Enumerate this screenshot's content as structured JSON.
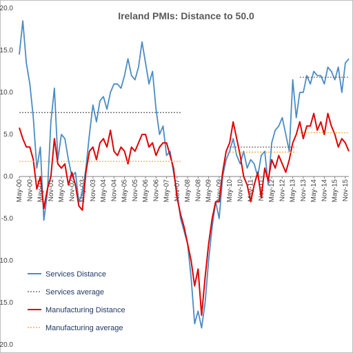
{
  "chart_data": {
    "type": "line",
    "title": "Ireland PMIs: Distance to 50.0",
    "xlabel": "",
    "ylabel": "",
    "ylim": [
      -20,
      20
    ],
    "yticks": [
      "20.0",
      "15.0",
      "10.0",
      "5.0",
      "0.0",
      "-5.0",
      "-10.0",
      "-15.0",
      "-20.0"
    ],
    "ytick_values": [
      20,
      15,
      10,
      5,
      0,
      -5,
      -10,
      -15,
      -20
    ],
    "xtick_labels": [
      "May-00",
      "Nov-00",
      "May-01",
      "Nov-01",
      "May-02",
      "Nov-02",
      "May-03",
      "Nov-03",
      "May-04",
      "Nov-04",
      "May-05",
      "Nov-05",
      "May-06",
      "Nov-06",
      "May-07",
      "Nov-07",
      "May-08",
      "Nov-08",
      "May-09",
      "Nov-09",
      "May-10",
      "Nov-10",
      "May-11",
      "Nov-11",
      "May-12",
      "Nov-12",
      "May-13",
      "Nov-13",
      "May-14",
      "Nov-14",
      "May-15",
      "Nov-15"
    ],
    "grid": false,
    "legend_position": "bottom-left",
    "series": [
      {
        "name": "Services Distance",
        "color": "#4a8bc4",
        "x": [
          "May-00",
          "Jul-00",
          "Sep-00",
          "Nov-00",
          "Jan-01",
          "Mar-01",
          "May-01",
          "Jul-01",
          "Sep-01",
          "Nov-01",
          "Jan-02",
          "Mar-02",
          "May-02",
          "Jul-02",
          "Sep-02",
          "Nov-02",
          "Jan-03",
          "Mar-03",
          "May-03",
          "Jul-03",
          "Sep-03",
          "Nov-03",
          "Jan-04",
          "Mar-04",
          "May-04",
          "Jul-04",
          "Sep-04",
          "Nov-04",
          "Jan-05",
          "Mar-05",
          "May-05",
          "Jul-05",
          "Sep-05",
          "Nov-05",
          "Jan-06",
          "Mar-06",
          "May-06",
          "Jul-06",
          "Sep-06",
          "Nov-06",
          "Jan-07",
          "Mar-07",
          "May-07",
          "Jul-07",
          "Sep-07",
          "Nov-07",
          "Jan-08",
          "Mar-08",
          "May-08",
          "Jul-08",
          "Sep-08",
          "Nov-08",
          "Jan-09",
          "Mar-09",
          "May-09",
          "Jul-09",
          "Sep-09",
          "Nov-09",
          "Jan-10",
          "Mar-10",
          "May-10",
          "Jul-10",
          "Sep-10",
          "Nov-10",
          "Jan-11",
          "Mar-11",
          "May-11",
          "Jul-11",
          "Sep-11",
          "Nov-11",
          "Jan-12",
          "Mar-12",
          "May-12",
          "Jul-12",
          "Sep-12",
          "Nov-12",
          "Jan-13",
          "Mar-13",
          "May-13",
          "Jul-13",
          "Sep-13",
          "Nov-13",
          "Jan-14",
          "Mar-14",
          "May-14",
          "Jul-14",
          "Sep-14",
          "Nov-14",
          "Jan-15",
          "Mar-15",
          "May-15",
          "Jul-15",
          "Sep-15",
          "Nov-15",
          "Jan-16"
        ],
        "values": [
          14.5,
          18.5,
          13.5,
          11.0,
          7.0,
          1.0,
          3.5,
          -5.2,
          -2.0,
          6.5,
          10.5,
          2.0,
          5.0,
          4.5,
          2.0,
          0.0,
          0.5,
          -3.0,
          -2.0,
          1.0,
          5.0,
          8.5,
          6.5,
          9.0,
          9.5,
          8.0,
          10.0,
          11.0,
          11.0,
          10.5,
          12.0,
          14.0,
          12.0,
          11.5,
          13.0,
          16.0,
          13.5,
          11.0,
          12.5,
          8.0,
          5.0,
          6.0,
          2.5,
          3.0,
          0.5,
          -2.0,
          -5.0,
          -6.5,
          -8.0,
          -12.0,
          -17.5,
          -16.0,
          -18.0,
          -15.0,
          -10.0,
          -6.0,
          -3.0,
          -5.0,
          0.0,
          2.0,
          3.0,
          4.5,
          2.5,
          1.5,
          3.0,
          1.0,
          2.0,
          1.5,
          0.0,
          2.5,
          3.0,
          -1.0,
          4.0,
          5.5,
          6.0,
          7.0,
          5.0,
          3.0,
          11.5,
          7.0,
          10.0,
          10.0,
          12.0,
          11.0,
          12.5,
          12.0,
          12.0,
          11.0,
          13.0,
          12.5,
          11.5,
          13.0,
          10.0,
          13.5,
          14.0
        ]
      },
      {
        "name": "Services average",
        "color": "#595959",
        "style": "dotted",
        "segments": [
          {
            "from": "May-00",
            "to": "Jan-08",
            "value": 7.6
          },
          {
            "from": "May-10",
            "to": "Jul-13",
            "value": 3.5
          },
          {
            "from": "Sep-13",
            "to": "Jan-16",
            "value": 11.8
          }
        ]
      },
      {
        "name": "Manufacturing Distance",
        "color": "#e00000",
        "x": [
          "May-00",
          "Jul-00",
          "Sep-00",
          "Nov-00",
          "Jan-01",
          "Mar-01",
          "May-01",
          "Jul-01",
          "Sep-01",
          "Nov-01",
          "Jan-02",
          "Mar-02",
          "May-02",
          "Jul-02",
          "Sep-02",
          "Nov-02",
          "Jan-03",
          "Mar-03",
          "May-03",
          "Jul-03",
          "Sep-03",
          "Nov-03",
          "Jan-04",
          "Mar-04",
          "May-04",
          "Jul-04",
          "Sep-04",
          "Nov-04",
          "Jan-05",
          "Mar-05",
          "May-05",
          "Jul-05",
          "Sep-05",
          "Nov-05",
          "Jan-06",
          "Mar-06",
          "May-06",
          "Jul-06",
          "Sep-06",
          "Nov-06",
          "Jan-07",
          "Mar-07",
          "May-07",
          "Jul-07",
          "Sep-07",
          "Nov-07",
          "Jan-08",
          "Mar-08",
          "May-08",
          "Jul-08",
          "Sep-08",
          "Nov-08",
          "Jan-09",
          "Mar-09",
          "May-09",
          "Jul-09",
          "Sep-09",
          "Nov-09",
          "Jan-10",
          "Mar-10",
          "May-10",
          "Jul-10",
          "Sep-10",
          "Nov-10",
          "Jan-11",
          "Mar-11",
          "May-11",
          "Jul-11",
          "Sep-11",
          "Nov-11",
          "Jan-12",
          "Mar-12",
          "May-12",
          "Jul-12",
          "Sep-12",
          "Nov-12",
          "Jan-13",
          "Mar-13",
          "May-13",
          "Jul-13",
          "Sep-13",
          "Nov-13",
          "Jan-14",
          "Mar-14",
          "May-14",
          "Jul-14",
          "Sep-14",
          "Nov-14",
          "Jan-15",
          "Mar-15",
          "May-15",
          "Jul-15",
          "Sep-15",
          "Nov-15",
          "Jan-16"
        ],
        "values": [
          5.8,
          4.5,
          3.5,
          3.5,
          2.0,
          -1.5,
          0.0,
          -3.8,
          -1.5,
          0.0,
          4.5,
          1.5,
          1.0,
          1.5,
          -1.0,
          0.5,
          -1.0,
          -3.5,
          -4.0,
          0.5,
          3.0,
          3.5,
          2.0,
          4.0,
          4.5,
          3.5,
          5.5,
          3.0,
          2.5,
          3.5,
          3.0,
          1.5,
          3.5,
          3.0,
          4.0,
          5.0,
          5.0,
          3.5,
          4.0,
          2.5,
          3.5,
          4.0,
          4.0,
          2.5,
          1.0,
          -2.5,
          -4.5,
          -6.0,
          -8.0,
          -10.0,
          -13.0,
          -11.0,
          -16.5,
          -12.0,
          -8.0,
          -5.0,
          -3.0,
          -3.0,
          0.5,
          3.0,
          4.0,
          6.5,
          4.5,
          2.5,
          0.0,
          -1.0,
          -3.0,
          -1.0,
          0.5,
          -2.5,
          1.0,
          -0.5,
          2.0,
          1.0,
          2.5,
          1.5,
          0.5,
          2.0,
          4.0,
          5.0,
          6.5,
          4.5,
          6.0,
          6.0,
          7.5,
          5.5,
          6.5,
          5.0,
          7.5,
          6.0,
          5.0,
          3.5,
          4.5,
          4.0,
          3.0
        ]
      },
      {
        "name": "Manufacturing average",
        "color": "#f0a030",
        "style": "dotted",
        "segments": [
          {
            "from": "May-00",
            "to": "Jan-08",
            "value": 1.8
          },
          {
            "from": "May-10",
            "to": "Jul-13",
            "value": 2.9
          },
          {
            "from": "Sep-13",
            "to": "Jan-16",
            "value": 5.2
          }
        ]
      }
    ]
  }
}
